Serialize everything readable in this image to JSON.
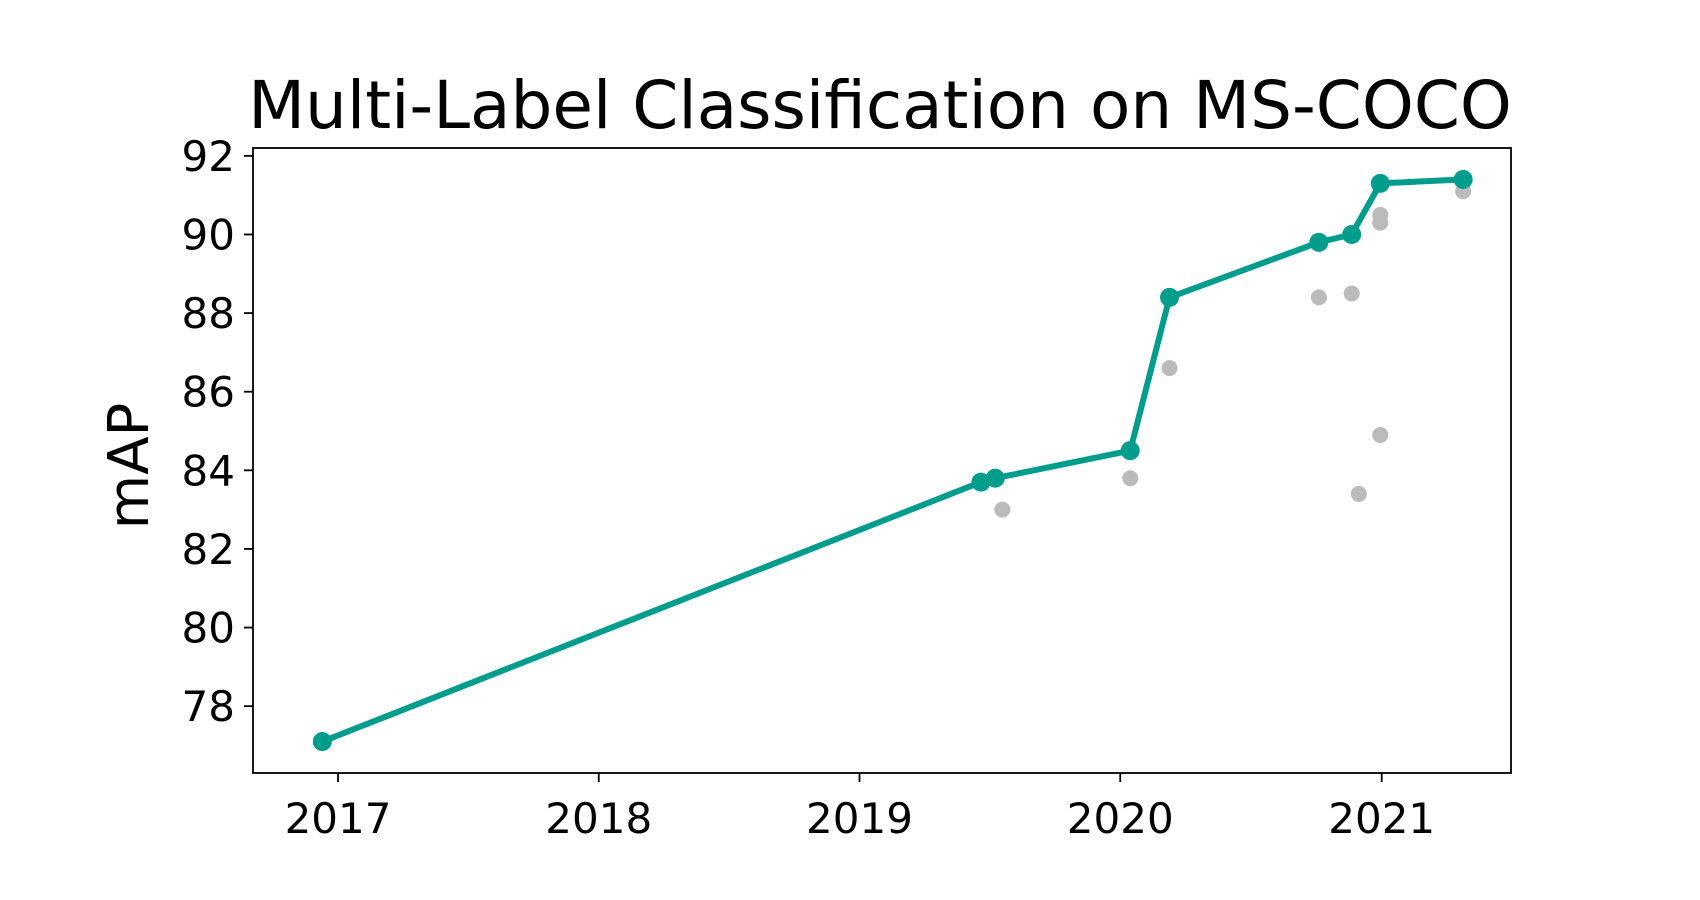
{
  "chart_data": {
    "type": "line",
    "title": "Multi-Label Classification on MS-COCO",
    "xlabel": "",
    "ylabel": "mAP",
    "xlim": [
      "2016-09-04",
      "2021-07-01"
    ],
    "ylim": [
      76.3,
      92.2
    ],
    "x_ticks": [
      "2017",
      "2018",
      "2019",
      "2020",
      "2021"
    ],
    "y_ticks": [
      78,
      80,
      82,
      84,
      86,
      88,
      90,
      92
    ],
    "grid": false,
    "legend": "none",
    "series": [
      {
        "style": "line-markers",
        "color": "#009c8c",
        "points": [
          {
            "x": "2016-12-10",
            "y": 77.1
          },
          {
            "x": "2019-06-20",
            "y": 83.7
          },
          {
            "x": "2019-07-10",
            "y": 83.8
          },
          {
            "x": "2020-01-15",
            "y": 84.5
          },
          {
            "x": "2020-03-10",
            "y": 88.4
          },
          {
            "x": "2020-10-05",
            "y": 89.8
          },
          {
            "x": "2020-11-20",
            "y": 90.0
          },
          {
            "x": "2020-12-30",
            "y": 91.3
          },
          {
            "x": "2021-04-25",
            "y": 91.4
          }
        ]
      },
      {
        "style": "scatter",
        "color": "#bbbbbb",
        "points": [
          {
            "x": "2019-07-20",
            "y": 83.0
          },
          {
            "x": "2020-01-15",
            "y": 83.8
          },
          {
            "x": "2020-03-10",
            "y": 86.6
          },
          {
            "x": "2020-10-05",
            "y": 88.4
          },
          {
            "x": "2020-11-20",
            "y": 88.5
          },
          {
            "x": "2020-11-30",
            "y": 83.4
          },
          {
            "x": "2020-12-30",
            "y": 84.9
          },
          {
            "x": "2020-12-30",
            "y": 90.5
          },
          {
            "x": "2020-12-30",
            "y": 90.3
          },
          {
            "x": "2021-04-25",
            "y": 91.1
          }
        ]
      }
    ]
  }
}
